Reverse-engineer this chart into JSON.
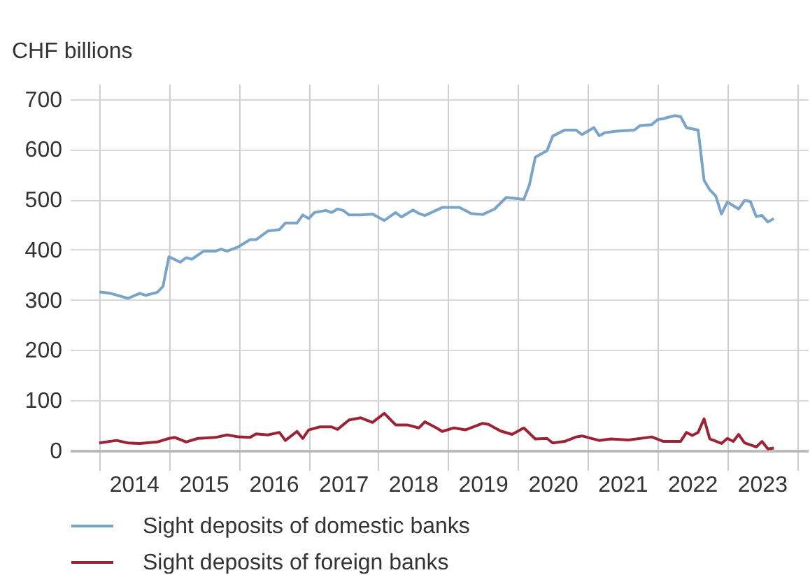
{
  "chart_data": {
    "type": "line",
    "ylabel": "CHF billions",
    "ylim": [
      0,
      730
    ],
    "yticks": [
      0,
      100,
      200,
      300,
      400,
      500,
      600,
      700
    ],
    "xlim": [
      "2013-08",
      "2024-03"
    ],
    "xticks": [
      {
        "value": "2014-01",
        "label": null
      },
      {
        "value": "2014-07",
        "label": "2014"
      },
      {
        "value": "2015-01",
        "label": null
      },
      {
        "value": "2015-07",
        "label": "2015"
      },
      {
        "value": "2016-01",
        "label": null
      },
      {
        "value": "2016-07",
        "label": "2016"
      },
      {
        "value": "2017-01",
        "label": null
      },
      {
        "value": "2017-07",
        "label": "2017"
      },
      {
        "value": "2018-01",
        "label": null
      },
      {
        "value": "2018-07",
        "label": "2018"
      },
      {
        "value": "2019-01",
        "label": null
      },
      {
        "value": "2019-07",
        "label": "2019"
      },
      {
        "value": "2020-01",
        "label": null
      },
      {
        "value": "2020-07",
        "label": "2020"
      },
      {
        "value": "2021-01",
        "label": null
      },
      {
        "value": "2021-07",
        "label": "2021"
      },
      {
        "value": "2022-01",
        "label": null
      },
      {
        "value": "2022-07",
        "label": "2022"
      },
      {
        "value": "2023-01",
        "label": null
      },
      {
        "value": "2023-07",
        "label": "2023"
      },
      {
        "value": "2024-01",
        "label": null
      }
    ],
    "grid": true,
    "legend": "bottom",
    "series": [
      {
        "name": "Sight deposits of domestic banks",
        "color": "#7ba4c9",
        "x": [
          "2014-01",
          "2014-03",
          "2014-06",
          "2014-08",
          "2014-09",
          "2014-11",
          "2014-12",
          "2015-01",
          "2015-03",
          "2015-04",
          "2015-05",
          "2015-07",
          "2015-09",
          "2015-10",
          "2015-11",
          "2016-01",
          "2016-03",
          "2016-04",
          "2016-06",
          "2016-08",
          "2016-09",
          "2016-11",
          "2016-12",
          "2017-01",
          "2017-02",
          "2017-04",
          "2017-05",
          "2017-06",
          "2017-07",
          "2017-08",
          "2017-10",
          "2017-12",
          "2018-02",
          "2018-04",
          "2018-05",
          "2018-07",
          "2018-08",
          "2018-09",
          "2018-12",
          "2019-03",
          "2019-05",
          "2019-07",
          "2019-09",
          "2019-11",
          "2020-02",
          "2020-03",
          "2020-04",
          "2020-06",
          "2020-07",
          "2020-09",
          "2020-11",
          "2020-12",
          "2021-02",
          "2021-03",
          "2021-04",
          "2021-06",
          "2021-09",
          "2021-10",
          "2021-12",
          "2022-01",
          "2022-02",
          "2022-04",
          "2022-05",
          "2022-06",
          "2022-08",
          "2022-09",
          "2022-10",
          "2022-11",
          "2022-12",
          "2023-01",
          "2023-03",
          "2023-04",
          "2023-05",
          "2023-06",
          "2023-07",
          "2023-08",
          "2023-09"
        ],
        "values": [
          316,
          313,
          303,
          313,
          309,
          315,
          327,
          386,
          375,
          384,
          381,
          397,
          397,
          401,
          397,
          406,
          420,
          420,
          437,
          440,
          453,
          453,
          469,
          462,
          474,
          478,
          474,
          481,
          478,
          469,
          469,
          471,
          458,
          474,
          465,
          479,
          472,
          468,
          484,
          484,
          472,
          470,
          481,
          504,
          500,
          529,
          584,
          597,
          626,
          638,
          638,
          629,
          643,
          627,
          633,
          636,
          638,
          647,
          649,
          659,
          661,
          667,
          665,
          643,
          638,
          538,
          519,
          507,
          471,
          495,
          481,
          498,
          496,
          466,
          468,
          455,
          462
        ]
      },
      {
        "name": "Sight deposits of foreign banks",
        "color": "#9b2335",
        "x": [
          "2014-01",
          "2014-04",
          "2014-06",
          "2014-08",
          "2014-11",
          "2015-01",
          "2015-02",
          "2015-04",
          "2015-06",
          "2015-09",
          "2015-11",
          "2016-01",
          "2016-03",
          "2016-04",
          "2016-06",
          "2016-08",
          "2016-09",
          "2016-11",
          "2016-12",
          "2017-01",
          "2017-03",
          "2017-05",
          "2017-06",
          "2017-08",
          "2017-10",
          "2017-12",
          "2018-02",
          "2018-04",
          "2018-06",
          "2018-08",
          "2018-09",
          "2018-11",
          "2018-12",
          "2019-02",
          "2019-04",
          "2019-07",
          "2019-08",
          "2019-10",
          "2019-12",
          "2020-02",
          "2020-04",
          "2020-06",
          "2020-07",
          "2020-09",
          "2020-11",
          "2020-12",
          "2021-03",
          "2021-05",
          "2021-08",
          "2021-12",
          "2022-02",
          "2022-05",
          "2022-06",
          "2022-07",
          "2022-08",
          "2022-09",
          "2022-10",
          "2022-12",
          "2023-01",
          "2023-02",
          "2023-03",
          "2023-04",
          "2023-06",
          "2023-07",
          "2023-08",
          "2023-09"
        ],
        "values": [
          15,
          20,
          15,
          14,
          17,
          24,
          26,
          17,
          24,
          26,
          31,
          27,
          26,
          33,
          31,
          36,
          20,
          38,
          24,
          41,
          47,
          47,
          42,
          61,
          65,
          56,
          74,
          51,
          51,
          45,
          57,
          45,
          38,
          45,
          41,
          54,
          52,
          39,
          32,
          45,
          23,
          24,
          15,
          18,
          27,
          29,
          20,
          23,
          21,
          27,
          18,
          18,
          36,
          30,
          36,
          63,
          23,
          14,
          24,
          18,
          32,
          15,
          7,
          18,
          3,
          5
        ]
      }
    ]
  }
}
